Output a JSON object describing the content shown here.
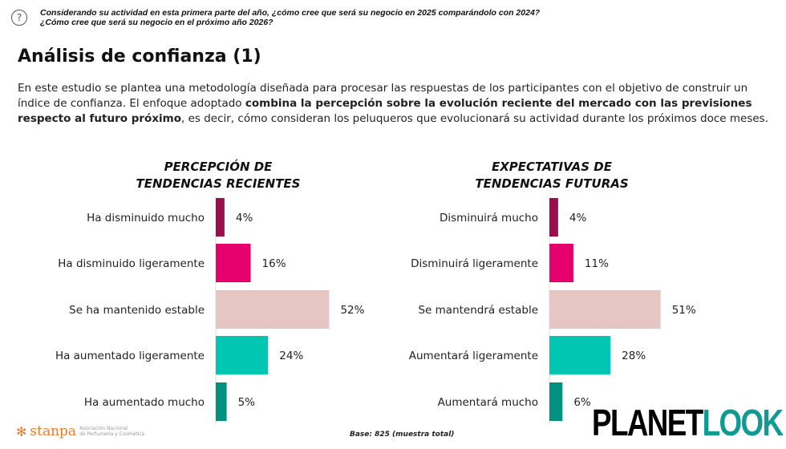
{
  "question": {
    "icon": "question-circle-icon",
    "line1": "Considerando su actividad en esta primera parte del año, ¿cómo cree que será su negocio en 2025 comparándolo con 2024?",
    "line2": "¿Cómo cree que será su negocio en el próximo año 2026?"
  },
  "title": "Análisis de confianza (1)",
  "intro": {
    "p1": "En este estudio se plantea una metodología diseñada para procesar las respuestas de los participantes con el objetivo de construir un índice de confianza. El enfoque adoptado ",
    "bold": "combina la percepción sobre la evolución reciente del mercado con las previsiones respecto al futuro próximo",
    "p2": ", es decir, cómo consideran los peluqueros que evolucionará su actividad durante los próximos doce meses."
  },
  "base": "Base: 825 (muestra total)",
  "footer": {
    "stanpa": "stanpa",
    "stanpa_sub1": "Asociación Nacional",
    "stanpa_sub2": "de Perfumería y Cosmética",
    "planet_a": "PLANET",
    "planet_b": "LOOK"
  },
  "colors": [
    "#9b0d4c",
    "#e5006d",
    "#e5c6c2",
    "#00c6b2",
    "#009180"
  ],
  "chart_data": [
    {
      "type": "bar",
      "orientation": "horizontal",
      "title_line1": "PERCEPCIÓN DE",
      "title_line2": "TENDENCIAS RECIENTES",
      "categories": [
        "Ha disminuido mucho",
        "Ha disminuido ligeramente",
        "Se ha mantenido estable",
        "Ha aumentado ligeramente",
        "Ha aumentado mucho"
      ],
      "values": [
        4,
        16,
        52,
        24,
        5
      ],
      "labels": [
        "4%",
        "16%",
        "52%",
        "24%",
        "5%"
      ],
      "unit": "%"
    },
    {
      "type": "bar",
      "orientation": "horizontal",
      "title_line1": "EXPECTATIVAS DE",
      "title_line2": "TENDENCIAS FUTURAS",
      "categories": [
        "Disminuirá mucho",
        "Disminuirá ligeramente",
        "Se mantendrá estable",
        "Aumentará ligeramente",
        "Aumentará mucho"
      ],
      "values": [
        4,
        11,
        51,
        28,
        6
      ],
      "labels": [
        "4%",
        "11%",
        "51%",
        "28%",
        "6%"
      ],
      "unit": "%"
    }
  ]
}
